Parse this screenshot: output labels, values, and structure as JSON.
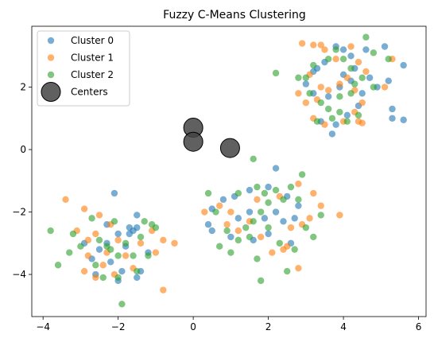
{
  "chart_data": {
    "type": "scatter",
    "title": "Fuzzy C-Means Clustering",
    "xlabel": "",
    "ylabel": "",
    "xlim": [
      -4.3,
      6.2
    ],
    "ylim": [
      -5.35,
      3.95
    ],
    "xticks": [
      -4,
      -2,
      0,
      2,
      4,
      6
    ],
    "yticks": [
      -4,
      -2,
      0,
      2
    ],
    "grid": false,
    "legend_position": "upper-left",
    "series": [
      {
        "name": "Cluster 0",
        "color": "#1f77b4",
        "points": [
          [
            -2.1,
            -1.4
          ],
          [
            -1.5,
            -2.1
          ],
          [
            -1.6,
            -2.6
          ],
          [
            -1.7,
            -2.7
          ],
          [
            -2.0,
            -2.7
          ],
          [
            -2.3,
            -3.0
          ],
          [
            -2.5,
            -3.2
          ],
          [
            -2.7,
            -3.5
          ],
          [
            -2.2,
            -3.6
          ],
          [
            -1.9,
            -3.9
          ],
          [
            -1.5,
            -4.1
          ],
          [
            -1.4,
            -3.9
          ],
          [
            -2.0,
            -4.2
          ],
          [
            -2.6,
            -4.0
          ],
          [
            -1.2,
            -3.3
          ],
          [
            -1.8,
            -3.1
          ],
          [
            -1.5,
            -2.5
          ],
          [
            -2.3,
            -2.4
          ],
          [
            -1.7,
            -2.5
          ],
          [
            -2.9,
            -3.0
          ],
          [
            2.2,
            -0.6
          ],
          [
            2.0,
            -1.2
          ],
          [
            1.5,
            -1.3
          ],
          [
            1.1,
            -1.5
          ],
          [
            0.8,
            -1.6
          ],
          [
            0.5,
            -1.9
          ],
          [
            0.4,
            -2.4
          ],
          [
            0.5,
            -2.6
          ],
          [
            1.2,
            -2.2
          ],
          [
            1.5,
            -2.0
          ],
          [
            1.9,
            -2.2
          ],
          [
            2.2,
            -2.0
          ],
          [
            2.4,
            -2.3
          ],
          [
            2.7,
            -2.2
          ],
          [
            2.8,
            -1.8
          ],
          [
            2.5,
            -1.5
          ],
          [
            2.0,
            -2.7
          ],
          [
            1.6,
            -2.9
          ],
          [
            1.0,
            -2.8
          ],
          [
            2.6,
            -3.0
          ],
          [
            3.3,
            2.6
          ],
          [
            3.5,
            2.8
          ],
          [
            3.8,
            3.3
          ],
          [
            4.0,
            3.2
          ],
          [
            4.2,
            3.0
          ],
          [
            4.6,
            3.2
          ],
          [
            5.1,
            3.3
          ],
          [
            5.6,
            2.7
          ],
          [
            5.2,
            2.2
          ],
          [
            4.9,
            2.0
          ],
          [
            4.5,
            1.8
          ],
          [
            4.2,
            2.2
          ],
          [
            3.9,
            2.0
          ],
          [
            3.6,
            1.7
          ],
          [
            3.2,
            1.8
          ],
          [
            3.0,
            2.1
          ],
          [
            4.4,
            1.4
          ],
          [
            4.1,
            1.1
          ],
          [
            3.8,
            0.8
          ],
          [
            3.4,
            0.9
          ],
          [
            3.7,
            0.5
          ],
          [
            5.3,
            1.3
          ],
          [
            5.3,
            1.0
          ],
          [
            5.6,
            0.95
          ],
          [
            4.0,
            2.4
          ],
          [
            4.3,
            2.6
          ],
          [
            4.7,
            2.3
          ],
          [
            3.2,
            2.5
          ]
        ]
      },
      {
        "name": "Cluster 1",
        "color": "#ff7f0e",
        "points": [
          [
            -3.4,
            -1.6
          ],
          [
            -2.9,
            -1.9
          ],
          [
            -2.5,
            -2.1
          ],
          [
            -2.2,
            -2.4
          ],
          [
            -3.1,
            -2.6
          ],
          [
            -2.8,
            -2.9
          ],
          [
            -2.6,
            -2.7
          ],
          [
            -2.3,
            -3.3
          ],
          [
            -2.8,
            -3.4
          ],
          [
            -2.4,
            -3.7
          ],
          [
            -2.9,
            -3.9
          ],
          [
            -2.6,
            -4.1
          ],
          [
            -2.1,
            -4.0
          ],
          [
            -1.6,
            -3.8
          ],
          [
            -1.0,
            -3.3
          ],
          [
            -0.8,
            -2.9
          ],
          [
            -0.5,
            -3.0
          ],
          [
            -1.1,
            -2.6
          ],
          [
            -1.4,
            -3.0
          ],
          [
            -1.8,
            -3.4
          ],
          [
            -0.8,
            -4.5
          ],
          [
            -2.0,
            -2.9
          ],
          [
            0.3,
            -2.0
          ],
          [
            0.7,
            -1.8
          ],
          [
            0.9,
            -2.4
          ],
          [
            1.2,
            -2.6
          ],
          [
            1.5,
            -2.3
          ],
          [
            1.8,
            -2.8
          ],
          [
            2.1,
            -3.3
          ],
          [
            2.4,
            -3.2
          ],
          [
            2.6,
            -2.5
          ],
          [
            2.9,
            -2.4
          ],
          [
            3.1,
            -2.2
          ],
          [
            3.4,
            -1.8
          ],
          [
            3.2,
            -1.4
          ],
          [
            2.8,
            -1.1
          ],
          [
            2.3,
            -1.5
          ],
          [
            1.7,
            -1.6
          ],
          [
            1.0,
            -2.0
          ],
          [
            3.9,
            -2.1
          ],
          [
            2.8,
            -3.8
          ],
          [
            2.5,
            -3.1
          ],
          [
            2.9,
            3.4
          ],
          [
            3.2,
            3.35
          ],
          [
            3.4,
            3.35
          ],
          [
            3.5,
            3.2
          ],
          [
            3.8,
            2.9
          ],
          [
            4.2,
            3.3
          ],
          [
            4.4,
            2.8
          ],
          [
            4.6,
            2.5
          ],
          [
            4.1,
            2.3
          ],
          [
            3.9,
            2.1
          ],
          [
            3.6,
            1.9
          ],
          [
            3.3,
            1.6
          ],
          [
            3.0,
            1.5
          ],
          [
            2.8,
            1.8
          ],
          [
            3.1,
            2.4
          ],
          [
            3.4,
            2.0
          ],
          [
            4.3,
            1.9
          ],
          [
            4.5,
            1.5
          ],
          [
            4.3,
            1.2
          ],
          [
            4.0,
            0.9
          ],
          [
            4.4,
            0.9
          ],
          [
            4.5,
            0.85
          ],
          [
            3.2,
            1.0
          ],
          [
            3.5,
            0.8
          ],
          [
            5.1,
            2.0
          ],
          [
            5.3,
            2.9
          ]
        ]
      },
      {
        "name": "Cluster 2",
        "color": "#2ca02c",
        "points": [
          [
            -3.8,
            -2.6
          ],
          [
            -3.6,
            -3.7
          ],
          [
            -3.2,
            -2.7
          ],
          [
            -3.0,
            -3.1
          ],
          [
            -2.7,
            -2.2
          ],
          [
            -2.5,
            -2.9
          ],
          [
            -2.3,
            -3.1
          ],
          [
            -2.1,
            -2.3
          ],
          [
            -2.0,
            -3.4
          ],
          [
            -1.8,
            -3.0
          ],
          [
            -1.6,
            -3.4
          ],
          [
            -1.4,
            -2.8
          ],
          [
            -1.2,
            -3.4
          ],
          [
            -1.0,
            -2.5
          ],
          [
            -2.2,
            -3.2
          ],
          [
            -2.0,
            -4.1
          ],
          [
            -1.9,
            -4.95
          ],
          [
            -2.4,
            -4.1
          ],
          [
            -2.6,
            -3.7
          ],
          [
            -1.5,
            -3.9
          ],
          [
            -1.3,
            -2.3
          ],
          [
            -1.1,
            -2.4
          ],
          [
            -3.3,
            -3.3
          ],
          [
            0.4,
            -1.4
          ],
          [
            0.6,
            -2.0
          ],
          [
            0.9,
            -2.6
          ],
          [
            1.2,
            -2.9
          ],
          [
            1.4,
            -2.5
          ],
          [
            1.6,
            -2.3
          ],
          [
            1.8,
            -2.0
          ],
          [
            2.0,
            -1.7
          ],
          [
            2.2,
            -1.3
          ],
          [
            2.4,
            -1.6
          ],
          [
            2.6,
            -1.2
          ],
          [
            2.8,
            -1.6
          ],
          [
            3.0,
            -2.5
          ],
          [
            3.2,
            -2.8
          ],
          [
            3.4,
            -2.1
          ],
          [
            1.6,
            -0.3
          ],
          [
            1.7,
            -1.2
          ],
          [
            1.9,
            -1.4
          ],
          [
            1.2,
            -1.4
          ],
          [
            0.7,
            -3.1
          ],
          [
            1.0,
            -3.3
          ],
          [
            1.7,
            -3.5
          ],
          [
            1.8,
            -4.2
          ],
          [
            2.3,
            -3.0
          ],
          [
            2.7,
            -3.2
          ],
          [
            2.5,
            -3.9
          ],
          [
            1.5,
            -2.8
          ],
          [
            2.9,
            -0.8
          ],
          [
            2.0,
            -2.5
          ],
          [
            2.2,
            2.45
          ],
          [
            2.8,
            2.3
          ],
          [
            3.0,
            2.3
          ],
          [
            3.2,
            2.7
          ],
          [
            3.6,
            2.9
          ],
          [
            3.8,
            3.2
          ],
          [
            4.0,
            2.9
          ],
          [
            4.2,
            2.6
          ],
          [
            4.6,
            3.6
          ],
          [
            4.8,
            3.1
          ],
          [
            5.2,
            2.9
          ],
          [
            4.5,
            2.3
          ],
          [
            4.2,
            1.8
          ],
          [
            3.9,
            1.7
          ],
          [
            3.6,
            1.3
          ],
          [
            3.4,
            1.5
          ],
          [
            3.3,
            0.9
          ],
          [
            3.7,
            1.0
          ],
          [
            3.9,
            1.2
          ],
          [
            4.1,
            0.9
          ],
          [
            4.4,
            1.1
          ],
          [
            4.8,
            2.0
          ],
          [
            3.1,
            1.8
          ],
          [
            4.3,
            2.1
          ]
        ]
      },
      {
        "name": "Centers",
        "color": "#444444",
        "points": [
          [
            0.0,
            0.7
          ],
          [
            0.0,
            0.25
          ],
          [
            0.98,
            0.05
          ]
        ]
      }
    ]
  }
}
